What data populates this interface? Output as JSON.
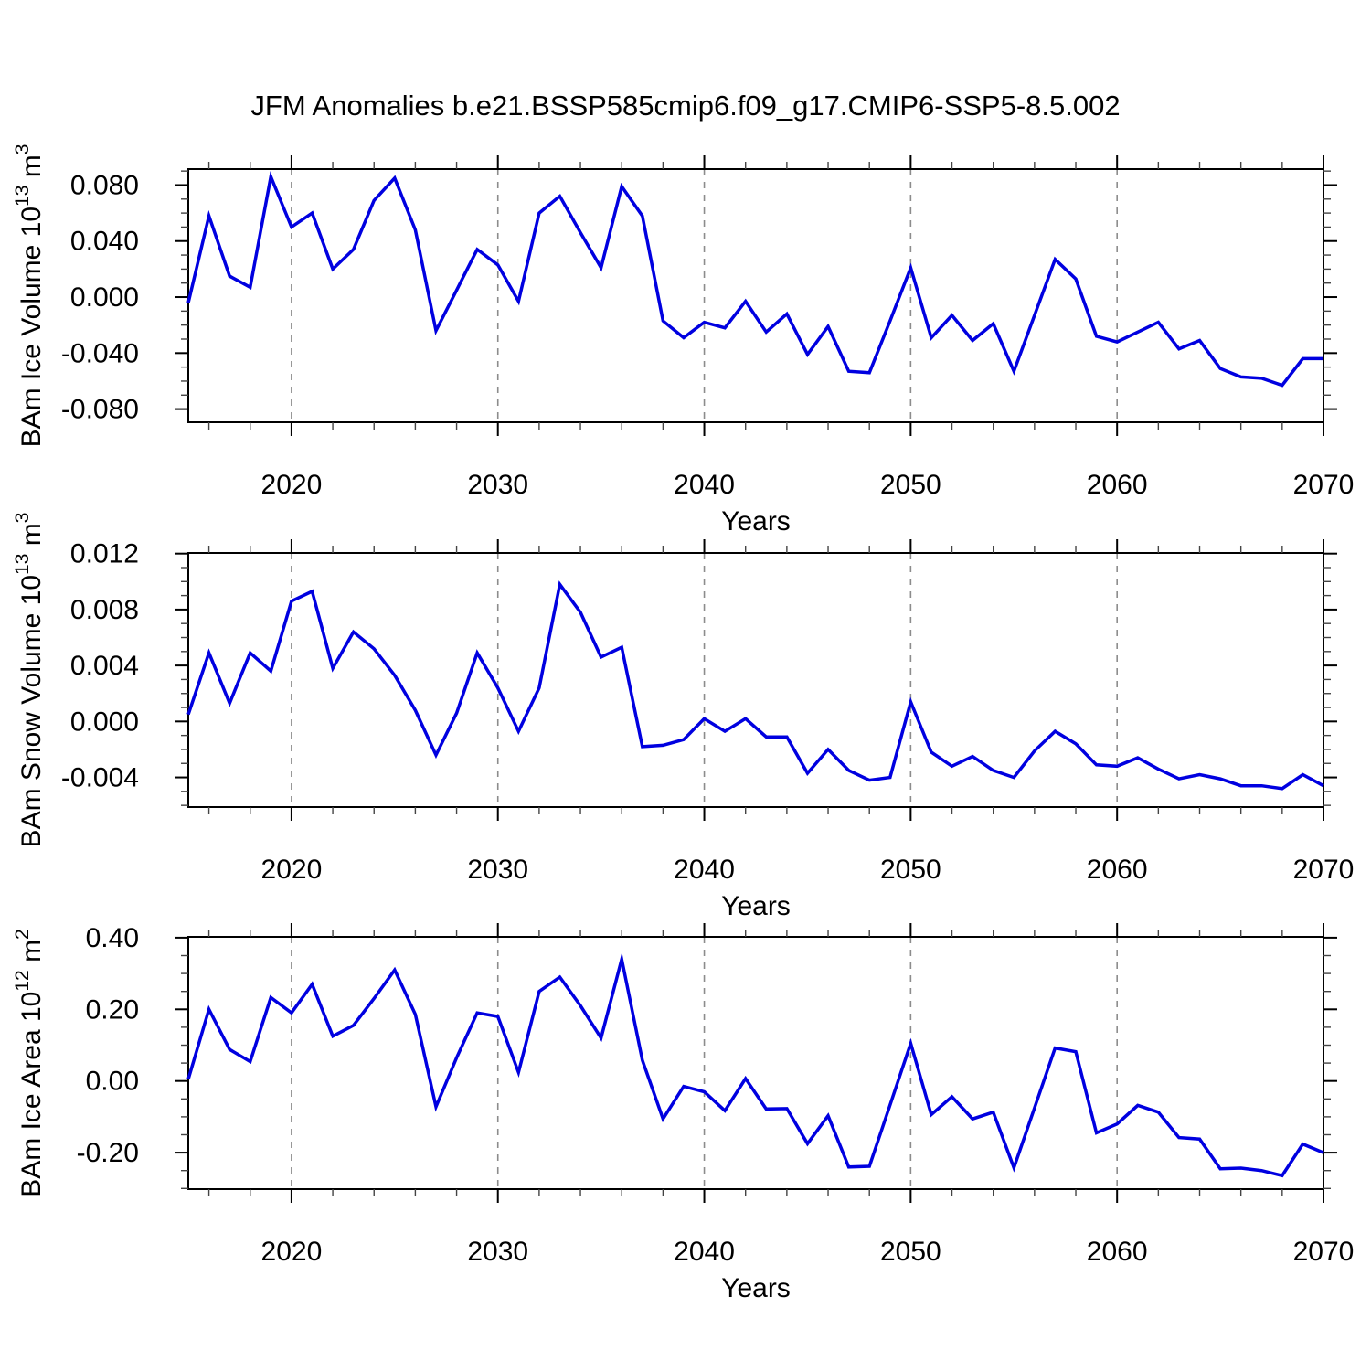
{
  "title": "JFM Anomalies b.e21.BSSP585cmip6.f09_g17.CMIP6-SSP5-8.5.002",
  "xlabel": "Years",
  "colors": {
    "line": "#0000e0",
    "grid": "#8c8c8c",
    "frame": "#000000",
    "minor_tick": "#444444",
    "text": "#000000",
    "background": "#ffffff"
  },
  "x_axis": {
    "start": 2015,
    "end": 2070,
    "major_ticks": [
      2020,
      2030,
      2040,
      2050,
      2060,
      2070
    ],
    "major_tick_labels": [
      "2020",
      "2030",
      "2040",
      "2050",
      "2060",
      "2070"
    ],
    "minor_step": 2,
    "gridline_years": [
      2020,
      2030,
      2040,
      2050,
      2060
    ]
  },
  "years": [
    2015,
    2016,
    2017,
    2018,
    2019,
    2020,
    2021,
    2022,
    2023,
    2024,
    2025,
    2026,
    2027,
    2028,
    2029,
    2030,
    2031,
    2032,
    2033,
    2034,
    2035,
    2036,
    2037,
    2038,
    2039,
    2040,
    2041,
    2042,
    2043,
    2044,
    2045,
    2046,
    2047,
    2048,
    2049,
    2050,
    2051,
    2052,
    2053,
    2054,
    2055,
    2056,
    2057,
    2058,
    2059,
    2060,
    2061,
    2062,
    2063,
    2064,
    2065,
    2066,
    2067,
    2068,
    2069,
    2070
  ],
  "chart_data": [
    {
      "type": "line",
      "title": "",
      "ylabel": "BAm Ice Volume 10^{13} m^{3}",
      "ylabel_plain": "BAm Ice Volume 10¹³ m³",
      "xlabel": "Years",
      "legend": "none",
      "grid": "vertical-dashed",
      "ylim": [
        -0.0894,
        0.0914
      ],
      "y_major_ticks": [
        0.08,
        0.04,
        0.0,
        -0.04,
        -0.08
      ],
      "y_tick_labels": [
        "0.080",
        "0.040",
        "0.000",
        "-0.040",
        "-0.080"
      ],
      "y_minor_step": 0.01,
      "values": [
        -0.004,
        0.058,
        0.015,
        0.007,
        0.086,
        0.05,
        0.06,
        0.02,
        0.034,
        0.069,
        0.085,
        0.048,
        -0.024,
        0.005,
        0.034,
        0.023,
        -0.003,
        0.06,
        0.072,
        0.046,
        0.021,
        0.079,
        0.058,
        -0.017,
        -0.029,
        -0.018,
        -0.022,
        -0.003,
        -0.025,
        -0.012,
        -0.041,
        -0.021,
        -0.053,
        -0.054,
        -0.017,
        0.021,
        -0.029,
        -0.013,
        -0.031,
        -0.019,
        -0.053,
        -0.013,
        0.027,
        0.013,
        -0.028,
        -0.032,
        -0.025,
        -0.018,
        -0.037,
        -0.031,
        -0.051,
        -0.057,
        -0.058,
        -0.063,
        -0.044,
        -0.044
      ]
    },
    {
      "type": "line",
      "title": "",
      "ylabel": "BAm Snow Volume 10^{13} m^{3}",
      "ylabel_plain": "BAm Snow Volume 10¹³ m³",
      "xlabel": "Years",
      "legend": "none",
      "grid": "vertical-dashed",
      "ylim": [
        -0.00612,
        0.012045
      ],
      "y_major_ticks": [
        0.012,
        0.008,
        0.004,
        0.0,
        -0.004
      ],
      "y_tick_labels": [
        "0.012",
        "0.008",
        "0.004",
        "0.000",
        "-0.004"
      ],
      "y_minor_step": 0.001,
      "values": [
        0.0005,
        0.0049,
        0.0013,
        0.0049,
        0.0036,
        0.0086,
        0.0093,
        0.0038,
        0.0064,
        0.0052,
        0.0033,
        0.0008,
        -0.0024,
        0.0006,
        0.0049,
        0.0024,
        -0.0007,
        0.0024,
        0.0098,
        0.0078,
        0.0046,
        0.0053,
        -0.0018,
        -0.0017,
        -0.0013,
        0.0002,
        -0.0007,
        0.0002,
        -0.0011,
        -0.0011,
        -0.0037,
        -0.002,
        -0.0035,
        -0.0042,
        -0.004,
        0.0014,
        -0.0022,
        -0.0032,
        -0.0025,
        -0.0035,
        -0.004,
        -0.0021,
        -0.0007,
        -0.0016,
        -0.0031,
        -0.0032,
        -0.0026,
        -0.0034,
        -0.0041,
        -0.0038,
        -0.0041,
        -0.0046,
        -0.0046,
        -0.0048,
        -0.0038,
        -0.0046
      ]
    },
    {
      "type": "line",
      "title": "",
      "ylabel": "BAm Ice Area 10^{12} m^{2}",
      "ylabel_plain": "BAm Ice Area 10¹² m²",
      "xlabel": "Years",
      "legend": "none",
      "grid": "vertical-dashed",
      "ylim": [
        -0.3018,
        0.4023
      ],
      "y_major_ticks": [
        0.4,
        0.2,
        0.0,
        -0.2
      ],
      "y_tick_labels": [
        "0.40",
        "0.20",
        "0.00",
        "-0.20"
      ],
      "y_minor_step": 0.05,
      "values": [
        0.005,
        0.2,
        0.088,
        0.054,
        0.233,
        0.19,
        0.27,
        0.125,
        0.155,
        0.23,
        0.31,
        0.186,
        -0.072,
        0.065,
        0.19,
        0.18,
        0.024,
        0.25,
        0.29,
        0.21,
        0.12,
        0.34,
        0.058,
        -0.106,
        -0.015,
        -0.03,
        -0.083,
        0.007,
        -0.078,
        -0.077,
        -0.175,
        -0.097,
        -0.24,
        -0.238,
        -0.067,
        0.105,
        -0.094,
        -0.044,
        -0.106,
        -0.087,
        -0.242,
        -0.075,
        0.092,
        0.082,
        -0.145,
        -0.12,
        -0.068,
        -0.087,
        -0.158,
        -0.162,
        -0.245,
        -0.243,
        -0.25,
        -0.264,
        -0.176,
        -0.2
      ]
    }
  ]
}
